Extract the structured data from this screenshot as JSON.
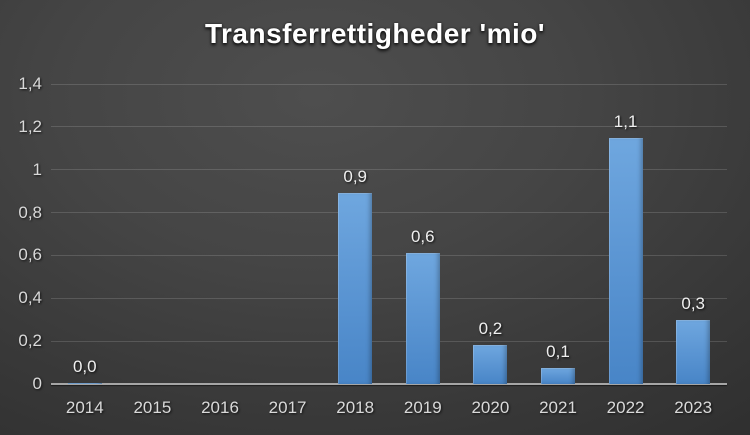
{
  "title": "Transferrettigheder 'mio'",
  "colors": {
    "background_center": "#4e4e4e",
    "background_edge": "#262626",
    "bar_gradient_top": "#6fa7df",
    "bar_gradient_bottom": "#4885c7",
    "gridline": "rgba(255,255,255,0.14)",
    "axis_line": "#a6a6a6",
    "tick_label": "#d9d9d9",
    "data_label": "#efefef",
    "title_color": "#ffffff"
  },
  "chart_data": {
    "type": "bar",
    "title": "Transferrettigheder 'mio'",
    "categories": [
      "2014",
      "2015",
      "2016",
      "2017",
      "2018",
      "2019",
      "2020",
      "2021",
      "2022",
      "2023"
    ],
    "values": [
      0.003,
      null,
      null,
      null,
      0.89,
      0.61,
      0.18,
      0.075,
      1.15,
      0.3
    ],
    "data_labels": [
      "0,0",
      null,
      null,
      null,
      "0,9",
      "0,6",
      "0,2",
      "0,1",
      "1,1",
      "0,3"
    ],
    "y_ticks": [
      "0",
      "0,2",
      "0,4",
      "0,6",
      "0,8",
      "1",
      "1,2",
      "1,4"
    ],
    "y_tick_values": [
      0,
      0.2,
      0.4,
      0.6,
      0.8,
      1.0,
      1.2,
      1.4
    ],
    "ylim": [
      0,
      1.4
    ],
    "grid": true,
    "legend_shown": false,
    "decimal_separator": ",",
    "data_labels_position": "above-bar"
  }
}
